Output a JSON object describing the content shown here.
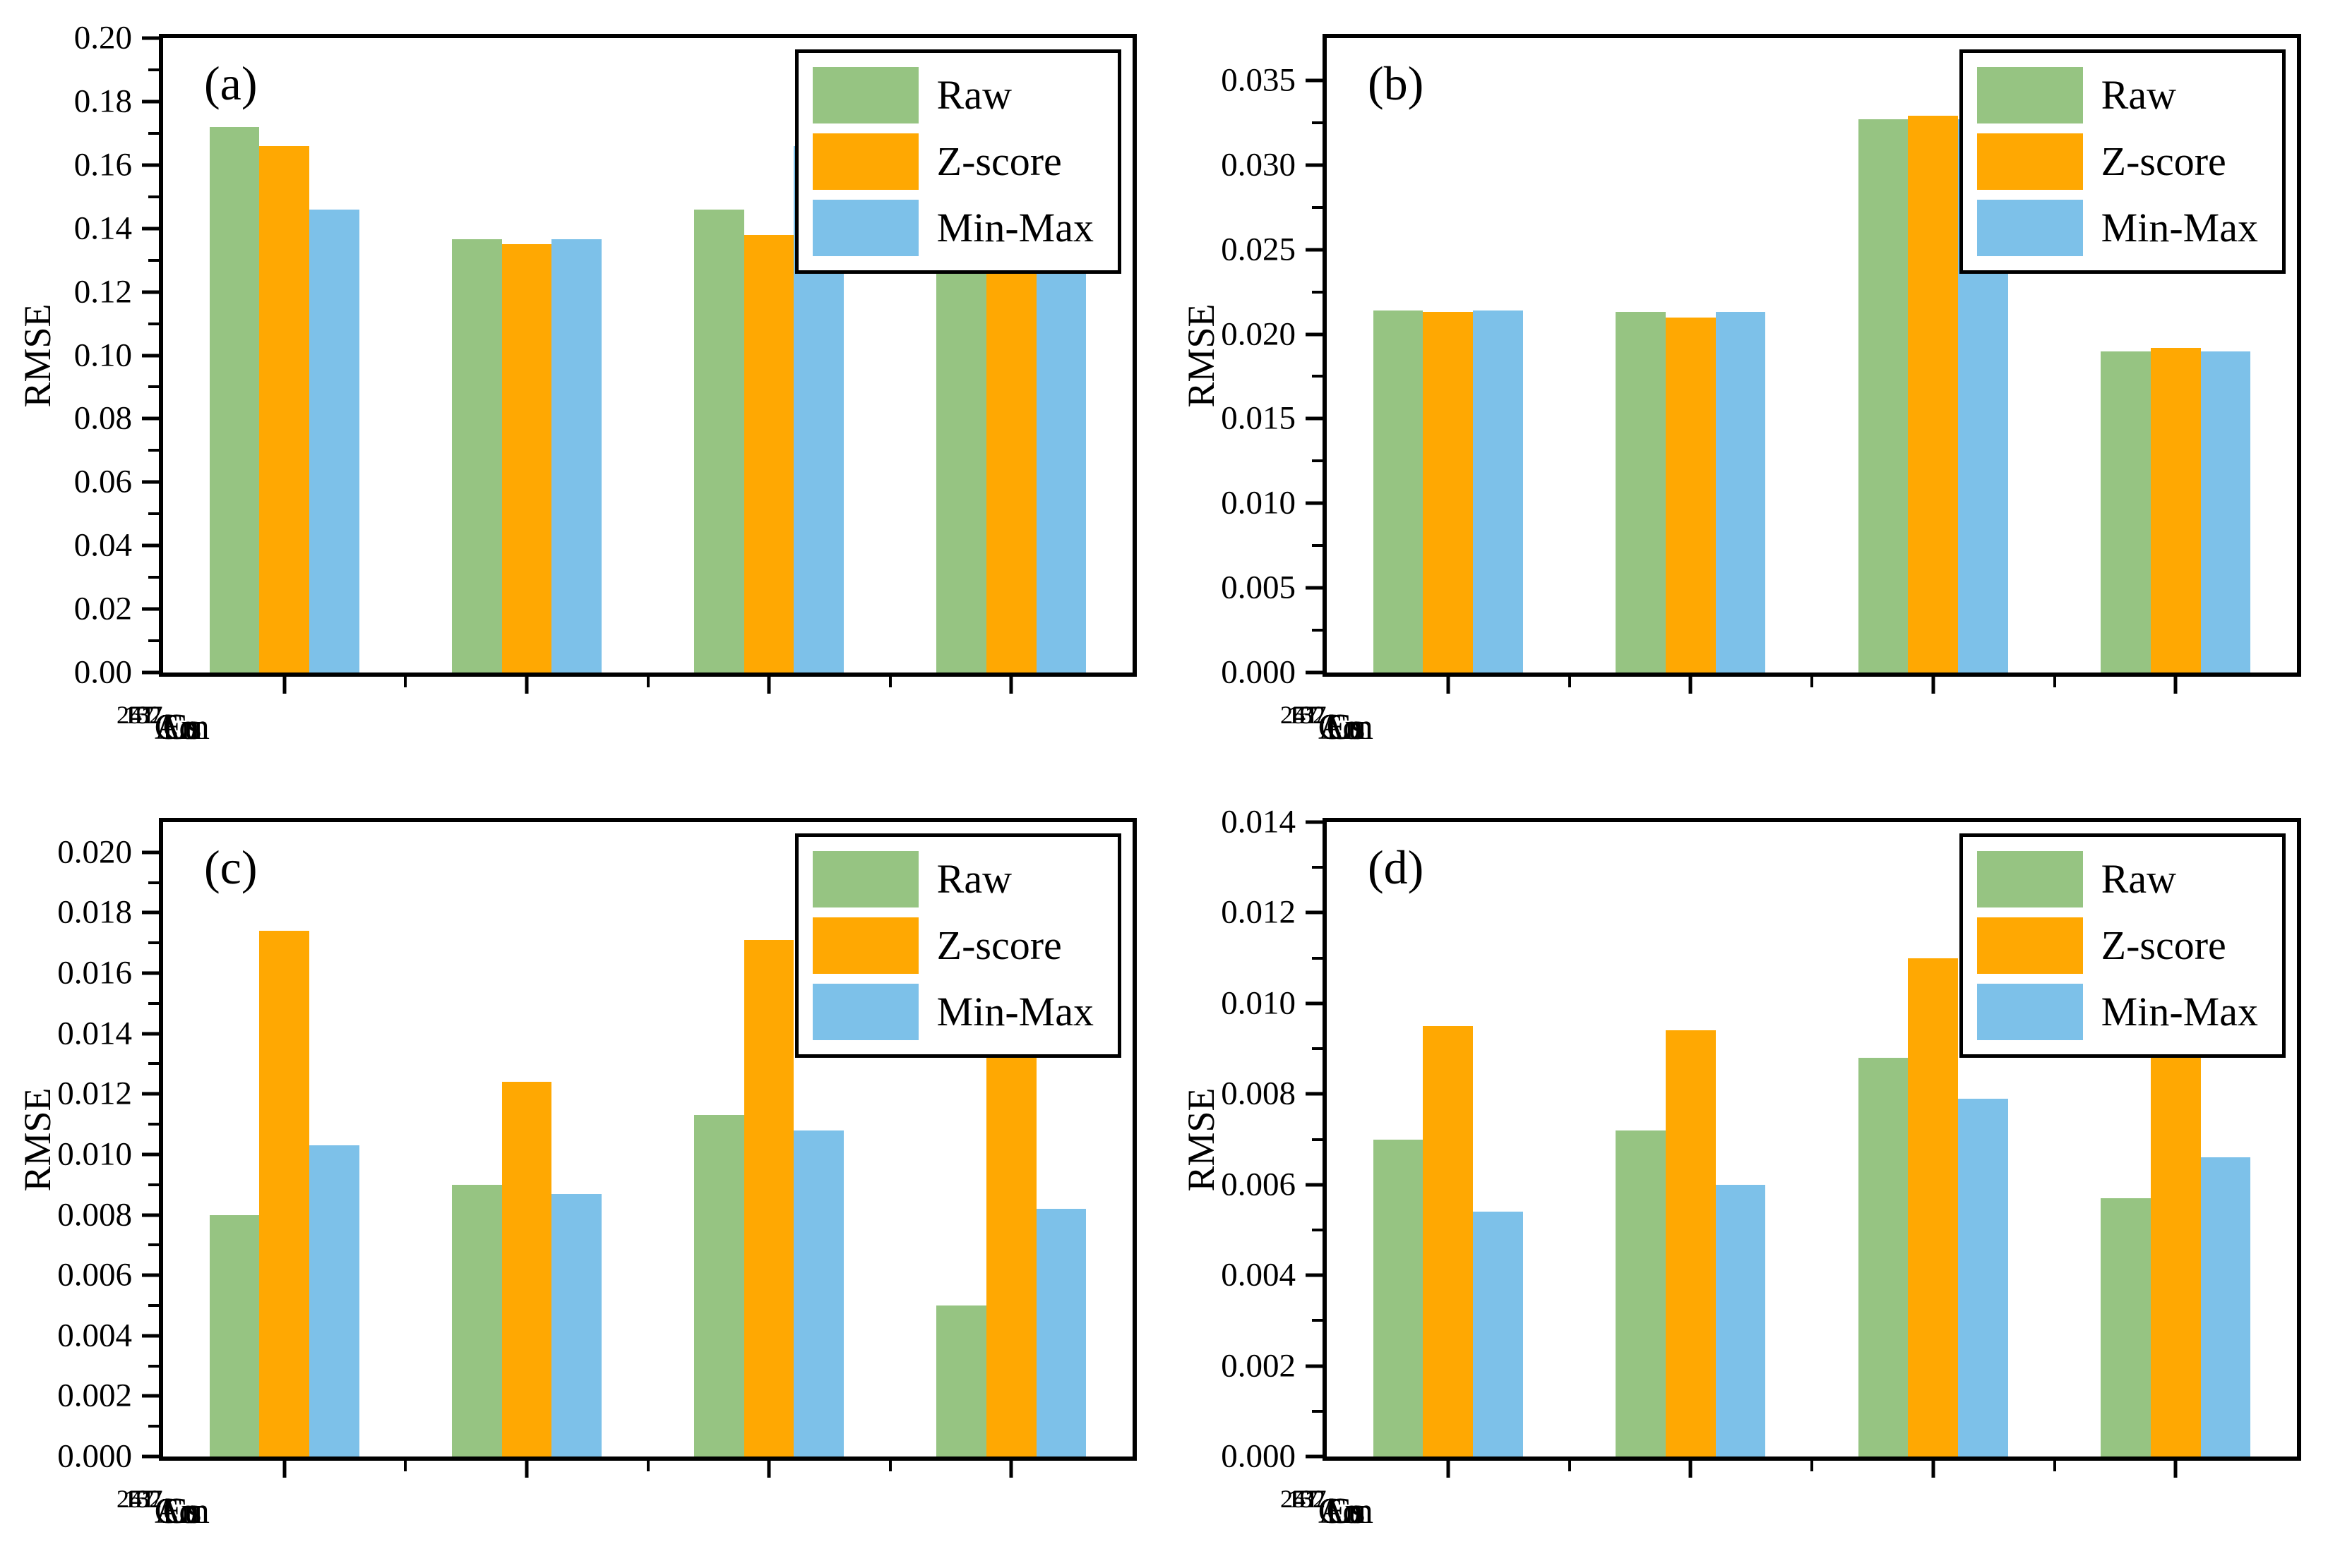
{
  "figure": {
    "background": "#ffffff",
    "ylabel": "RMSE",
    "series_colors": {
      "Raw": "#96C482",
      "Z-score": "#FFA802",
      "Min-Max": "#7DC1E9"
    },
    "legend": {
      "entries": [
        "Raw",
        "Z-score",
        "Min-Max"
      ],
      "position": "top-right"
    },
    "categories": [
      {
        "mass": "241",
        "symbol": "Am"
      },
      {
        "mass": "57",
        "symbol": "Co"
      },
      {
        "mass": "137",
        "symbol": "Cs"
      },
      {
        "mass": "152",
        "symbol": "Eu"
      }
    ]
  },
  "chart_data": [
    {
      "type": "bar",
      "title": "(a)",
      "xlabel": "",
      "ylabel": "RMSE",
      "categories": [
        "241Am",
        "57Co",
        "137Cs",
        "152Eu"
      ],
      "series": [
        {
          "name": "Raw",
          "values": [
            0.172,
            0.1365,
            0.146,
            0.143
          ]
        },
        {
          "name": "Z-score",
          "values": [
            0.166,
            0.135,
            0.138,
            0.142
          ]
        },
        {
          "name": "Min-Max",
          "values": [
            0.146,
            0.1365,
            0.166,
            0.142
          ]
        }
      ],
      "ylim": [
        0,
        0.2
      ],
      "ytick_step": 0.02,
      "ytick_decimals": 2,
      "grid": false,
      "legend_position": "top-right"
    },
    {
      "type": "bar",
      "title": "(b)",
      "xlabel": "",
      "ylabel": "RMSE",
      "categories": [
        "241Am",
        "57Co",
        "137Cs",
        "152Eu"
      ],
      "series": [
        {
          "name": "Raw",
          "values": [
            0.0214,
            0.0213,
            0.0327,
            0.019
          ]
        },
        {
          "name": "Z-score",
          "values": [
            0.0213,
            0.021,
            0.0329,
            0.0192
          ]
        },
        {
          "name": "Min-Max",
          "values": [
            0.0214,
            0.0213,
            0.0327,
            0.019
          ]
        }
      ],
      "ylim": [
        0,
        0.0375
      ],
      "ytick_step": 0.005,
      "ytick_decimals": 3,
      "grid": false,
      "legend_position": "top-right"
    },
    {
      "type": "bar",
      "title": "(c)",
      "xlabel": "",
      "ylabel": "RMSE",
      "categories": [
        "241Am",
        "57Co",
        "137Cs",
        "152Eu"
      ],
      "series": [
        {
          "name": "Raw",
          "values": [
            0.008,
            0.009,
            0.0113,
            0.005
          ]
        },
        {
          "name": "Z-score",
          "values": [
            0.0174,
            0.0124,
            0.0171,
            0.0158
          ]
        },
        {
          "name": "Min-Max",
          "values": [
            0.0103,
            0.0087,
            0.0108,
            0.0082
          ]
        }
      ],
      "ylim": [
        0,
        0.021
      ],
      "ytick_step": 0.002,
      "ytick_decimals": 3,
      "grid": false,
      "legend_position": "top-right"
    },
    {
      "type": "bar",
      "title": "(d)",
      "xlabel": "",
      "ylabel": "RMSE",
      "categories": [
        "241Am",
        "57Co",
        "137Cs",
        "152Eu"
      ],
      "series": [
        {
          "name": "Raw",
          "values": [
            0.007,
            0.0072,
            0.0088,
            0.0057
          ]
        },
        {
          "name": "Z-score",
          "values": [
            0.0095,
            0.0094,
            0.011,
            0.01
          ]
        },
        {
          "name": "Min-Max",
          "values": [
            0.0054,
            0.006,
            0.0079,
            0.0066
          ]
        }
      ],
      "ylim": [
        0,
        0.014
      ],
      "ytick_step": 0.002,
      "ytick_decimals": 3,
      "grid": false,
      "legend_position": "top-right"
    }
  ]
}
